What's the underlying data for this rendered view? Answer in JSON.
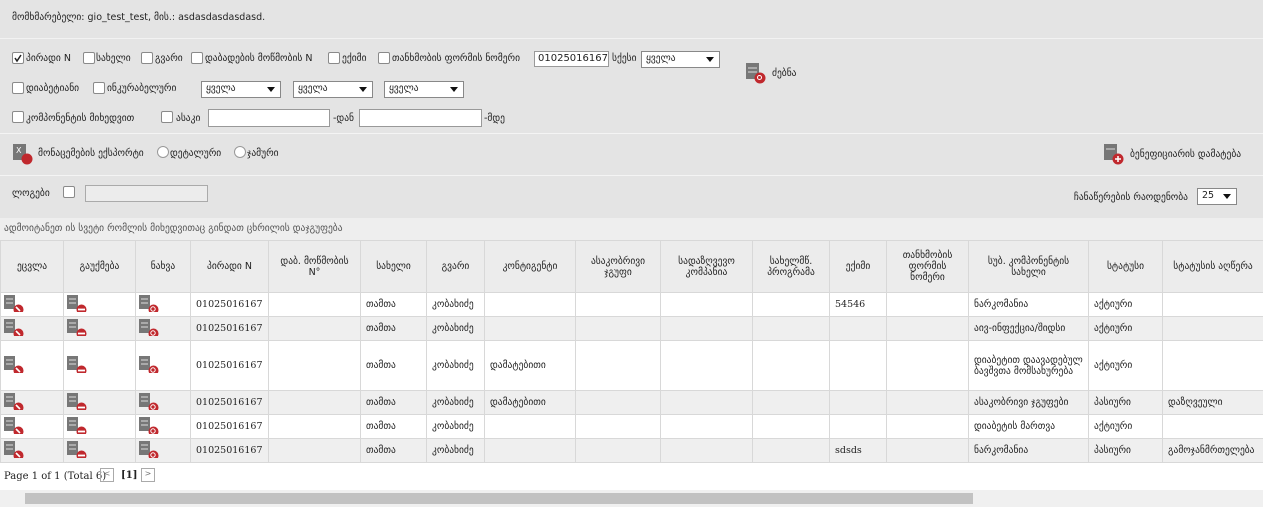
{
  "header": {
    "user": "მომხმარებელი: gio_test_test, მის.: asdasdasdasdasd."
  },
  "filters": {
    "row1": [
      "პირადი N",
      "სახელი",
      "გვარი",
      "დაბადების მოწმობის N",
      "ექიმი",
      "თანხმობის ფორმის ნომერი"
    ],
    "personal_no": "01025016167",
    "gender": "სქესი",
    "selects": [
      "ყველა",
      "ყველა",
      "ყველა",
      "ყველა"
    ],
    "search": "ძებნა",
    "row2": [
      "დიაბეტიანი",
      "ინკურაბელური"
    ],
    "component": "კომპონენტის მიხედვით",
    "age": "ასაკი",
    "from": "-დან",
    "to": "-მდე"
  },
  "export": {
    "label": "მონაცემების ექსპორტი",
    "detailed": "დეტალური",
    "total": "ჯამური",
    "add": "ბენეფიციარის დამატება"
  },
  "logs": {
    "label": "ლოგები",
    "page_size_label": "ჩანაწერების რაოდენობა",
    "page_size": "25"
  },
  "group_hint": "ადმოიტანეთ ის სვეტი რომლის მიხედვითაც გინდათ ცხრილის დაჯგუფება",
  "table": {
    "columns": [
      "ეცვლა",
      "გაუქმება",
      "ნახვა",
      "პირადი N",
      "დაბ. მოწმობის N°",
      "სახელი",
      "გვარი",
      "კონტიგენტი",
      "ასაკობრივი ჯგუფი",
      "სადაზღვევო კომპანია",
      "სახელმწ. პროგრამა",
      "ექიმი",
      "თანხმობის ფორმის ნომერი",
      "სუბ. კომპონენტის სახელი",
      "სტატუსი",
      "სტატუსის აღწერა"
    ],
    "rows": [
      [
        "01025016167",
        null,
        "თამთა",
        "კობახიძე",
        null,
        null,
        null,
        null,
        "54546",
        null,
        "ნარკომანია",
        "აქტიური",
        null
      ],
      [
        "01025016167",
        null,
        "თამთა",
        "კობახიძე",
        null,
        null,
        null,
        null,
        null,
        null,
        "აივ-ინფექცია/შიდსი",
        "აქტიური",
        null
      ],
      [
        "01025016167",
        null,
        "თამთა",
        "კობახიძე",
        "დამატებითი",
        null,
        null,
        null,
        null,
        null,
        "დიაბეტით დაავადებულ ბავშვთა მომსახურება",
        "აქტიური",
        null
      ],
      [
        "01025016167",
        null,
        "თამთა",
        "კობახიძე",
        "დამატებითი",
        null,
        null,
        null,
        null,
        null,
        "ასაკობრივი ჯგუფები",
        "პასიური",
        "დაზღვეული"
      ],
      [
        "01025016167",
        null,
        "თამთა",
        "კობახიძე",
        null,
        null,
        null,
        null,
        null,
        null,
        "დიაბეტის მართვა",
        "აქტიური",
        null
      ],
      [
        "01025016167",
        null,
        "თამთა",
        "კობახიძე",
        null,
        null,
        null,
        null,
        "sdsds",
        null,
        "ნარკომანია",
        "პასიური",
        "გამოჯანმრთელება"
      ]
    ]
  },
  "pager": {
    "summary": "Page 1 of 1 (Total 6)",
    "current": "[1]"
  }
}
